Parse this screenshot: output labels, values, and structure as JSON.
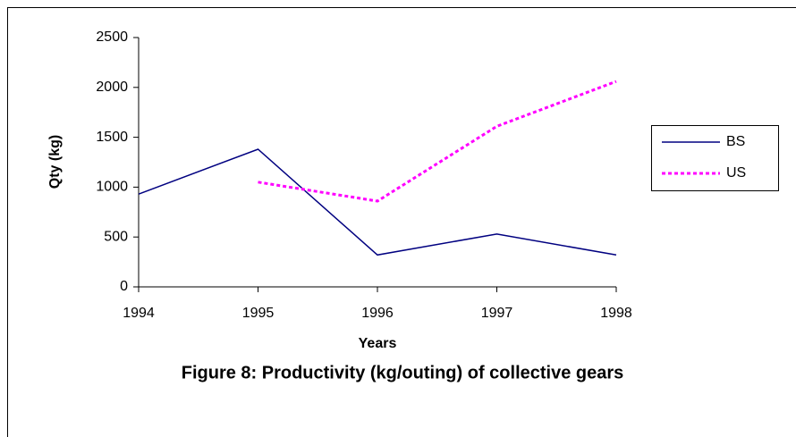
{
  "chart_data": {
    "type": "line",
    "title": "Figure 8: Productivity (kg/outing) of collective gears",
    "xlabel": "Years",
    "ylabel": "Qty (kg)",
    "x": [
      1994,
      1995,
      1996,
      1997,
      1998
    ],
    "xlim": [
      1994,
      1998
    ],
    "xticks": [
      1994,
      1995,
      1996,
      1997,
      1998
    ],
    "ylim": [
      0,
      2500
    ],
    "yticks": [
      0,
      500,
      1000,
      1500,
      2000,
      2500
    ],
    "series": [
      {
        "name": "BS",
        "color": "#000080",
        "dash": "solid",
        "values": [
          930,
          1380,
          320,
          530,
          320
        ]
      },
      {
        "name": "US",
        "color": "#ff00ff",
        "dash": "dotted",
        "values": [
          null,
          1050,
          860,
          1610,
          2060
        ]
      }
    ],
    "legend": "right"
  }
}
